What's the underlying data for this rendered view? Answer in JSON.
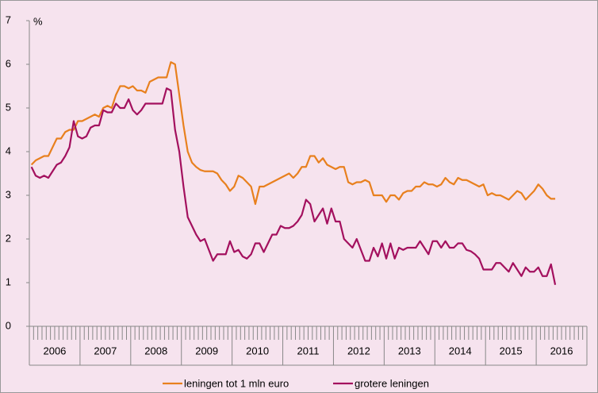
{
  "chart_data": {
    "type": "line",
    "y_label": "%",
    "categories": [
      "2006",
      null,
      null,
      null,
      null,
      null,
      null,
      null,
      null,
      null,
      null,
      null,
      "2007",
      null,
      null,
      null,
      null,
      null,
      null,
      null,
      null,
      null,
      null,
      null,
      "2008",
      null,
      null,
      null,
      null,
      null,
      null,
      null,
      null,
      null,
      null,
      null,
      "2009",
      null,
      null,
      null,
      null,
      null,
      null,
      null,
      null,
      null,
      null,
      null,
      "2010",
      null,
      null,
      null,
      null,
      null,
      null,
      null,
      null,
      null,
      null,
      null,
      "2011",
      null,
      null,
      null,
      null,
      null,
      null,
      null,
      null,
      null,
      null,
      null,
      "2012",
      null,
      null,
      null,
      null,
      null,
      null,
      null,
      null,
      null,
      null,
      null,
      "2013",
      null,
      null,
      null,
      null,
      null,
      null,
      null,
      null,
      null,
      null,
      null,
      "2014",
      null,
      null,
      null,
      null,
      null,
      null,
      null,
      null,
      null,
      null,
      null,
      "2015",
      null,
      null,
      null,
      null,
      null,
      null,
      null,
      null,
      null,
      null,
      null,
      "2016",
      null,
      null,
      null,
      null,
      null,
      null,
      null,
      null,
      null,
      null,
      null
    ],
    "series": [
      {
        "name": "leningen tot 1 mln euro",
        "color": "#e8801e",
        "values": [
          3.7,
          3.8,
          3.85,
          3.9,
          3.9,
          4.1,
          4.3,
          4.3,
          4.45,
          4.5,
          4.5,
          4.7,
          4.7,
          4.75,
          4.8,
          4.85,
          4.8,
          5.0,
          5.05,
          5.0,
          5.3,
          5.5,
          5.5,
          5.45,
          5.5,
          5.4,
          5.4,
          5.35,
          5.6,
          5.65,
          5.7,
          5.7,
          5.7,
          6.05,
          6.0,
          5.3,
          4.6,
          4.0,
          3.75,
          3.65,
          3.58,
          3.55,
          3.55,
          3.55,
          3.5,
          3.35,
          3.25,
          3.1,
          3.2,
          3.45,
          3.4,
          3.3,
          3.2,
          2.8,
          3.2,
          3.2,
          3.25,
          3.3,
          3.35,
          3.4,
          3.45,
          3.5,
          3.4,
          3.5,
          3.65,
          3.65,
          3.9,
          3.9,
          3.75,
          3.85,
          3.7,
          3.65,
          3.6,
          3.65,
          3.65,
          3.3,
          3.25,
          3.3,
          3.3,
          3.35,
          3.3,
          3.0,
          3.0,
          3.0,
          2.85,
          3.0,
          3.0,
          2.9,
          3.05,
          3.1,
          3.1,
          3.2,
          3.2,
          3.3,
          3.25,
          3.25,
          3.2,
          3.25,
          3.4,
          3.3,
          3.25,
          3.4,
          3.35,
          3.35,
          3.3,
          3.25,
          3.2,
          3.25,
          3.0,
          3.05,
          3.0,
          3.0,
          2.95,
          2.9,
          3.0,
          3.1,
          3.05,
          2.9,
          3.0,
          3.1,
          3.25,
          3.15,
          3.0,
          2.92,
          2.92,
          null,
          null,
          null,
          null,
          null,
          null,
          null
        ]
      },
      {
        "name": "grotere leningen",
        "color": "#a3105e",
        "values": [
          3.65,
          3.45,
          3.4,
          3.45,
          3.4,
          3.55,
          3.7,
          3.75,
          3.9,
          4.1,
          4.7,
          4.35,
          4.3,
          4.35,
          4.55,
          4.6,
          4.6,
          4.95,
          4.9,
          4.9,
          5.1,
          5.0,
          5.0,
          5.2,
          4.95,
          4.85,
          4.95,
          5.1,
          5.1,
          5.1,
          5.1,
          5.1,
          5.45,
          5.4,
          4.5,
          4.0,
          3.2,
          2.5,
          2.3,
          2.1,
          1.95,
          2.0,
          1.75,
          1.5,
          1.65,
          1.65,
          1.65,
          1.95,
          1.7,
          1.75,
          1.6,
          1.55,
          1.65,
          1.9,
          1.9,
          1.7,
          1.9,
          2.1,
          2.1,
          2.3,
          2.25,
          2.25,
          2.3,
          2.4,
          2.55,
          2.9,
          2.8,
          2.4,
          2.55,
          2.7,
          2.35,
          2.7,
          2.4,
          2.4,
          2.0,
          1.9,
          1.8,
          2.0,
          1.75,
          1.5,
          1.5,
          1.8,
          1.6,
          1.9,
          1.55,
          1.9,
          1.55,
          1.8,
          1.75,
          1.8,
          1.8,
          1.8,
          1.95,
          1.8,
          1.65,
          1.95,
          1.95,
          1.8,
          1.95,
          1.8,
          1.8,
          1.9,
          1.9,
          1.75,
          1.72,
          1.65,
          1.55,
          1.3,
          1.3,
          1.3,
          1.45,
          1.45,
          1.35,
          1.25,
          1.45,
          1.3,
          1.15,
          1.35,
          1.25,
          1.25,
          1.35,
          1.15,
          1.15,
          1.42,
          0.95,
          null,
          null,
          null,
          null,
          null,
          null,
          null
        ]
      }
    ],
    "ylim": [
      0,
      7
    ],
    "yticks": [
      0,
      1,
      2,
      3,
      4,
      5,
      6,
      7
    ],
    "grid": false,
    "legend": "bottom"
  }
}
